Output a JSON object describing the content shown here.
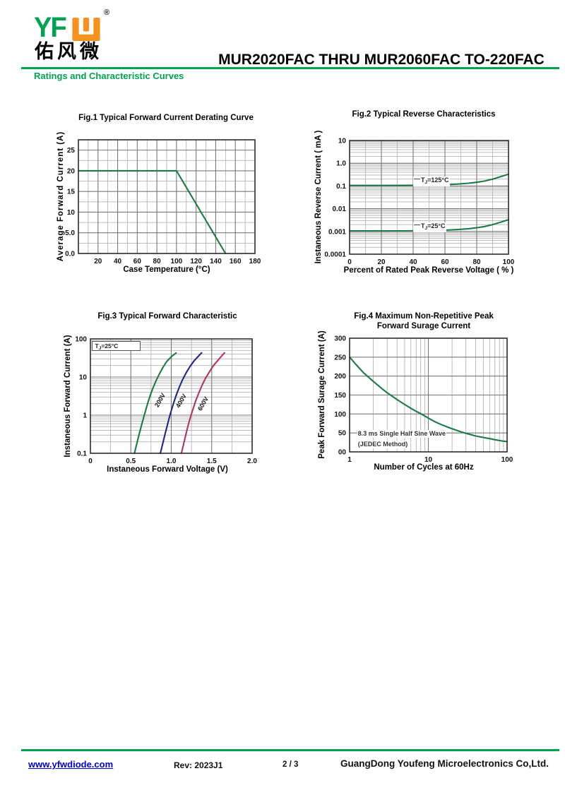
{
  "header": {
    "logo_text": "YF",
    "registered": "®",
    "chinese_name": "佑风微",
    "title": "MUR2020FAC THRU MUR2060FAC  TO-220FAC",
    "subtitle": "Ratings and Characteristic Curves"
  },
  "footer": {
    "website": "www.yfwdiode.com",
    "rev": "Rev: 2023J1",
    "page": "2 / 3",
    "company": "GuangDong Youfeng Microelectronics Co,Ltd."
  },
  "colors": {
    "accent_green": "#00A350",
    "logo_orange": "#F6921E",
    "link_blue": "#0000DD",
    "curve_green": "#1B7A46",
    "curve_blue": "#23238F",
    "curve_crimson": "#B13467",
    "grid_gray": "#A8A8A8"
  },
  "chart_data": [
    {
      "id": "fig1",
      "type": "line",
      "title": "Fig.1  Typical Forward Current Derating Curve",
      "xlabel": "Case Temperature (°C)",
      "ylabel": "Average Forward Current  (A)",
      "xscale": "linear",
      "yscale": "linear",
      "xlim": [
        0,
        180
      ],
      "ylim": [
        0,
        27.5
      ],
      "xminor": 10,
      "xmajor": 20,
      "yminor": 2.5,
      "ymajor": 5,
      "grid": "on",
      "xticks": [
        {
          "v": 20,
          "t": "20"
        },
        {
          "v": 40,
          "t": "40"
        },
        {
          "v": 60,
          "t": "60"
        },
        {
          "v": 80,
          "t": "80"
        },
        {
          "v": 100,
          "t": "100"
        },
        {
          "v": 120,
          "t": "120"
        },
        {
          "v": 140,
          "t": "140"
        },
        {
          "v": 160,
          "t": "160"
        },
        {
          "v": 180,
          "t": "180"
        }
      ],
      "yticks": [
        {
          "v": 0,
          "t": "0.0"
        },
        {
          "v": 5,
          "t": "5.0"
        },
        {
          "v": 10,
          "t": "10"
        },
        {
          "v": 15,
          "t": "15"
        },
        {
          "v": 20,
          "t": "20"
        },
        {
          "v": 25,
          "t": "25"
        }
      ],
      "series": [
        {
          "name": "average-forward-current",
          "color": "#1B7A46",
          "points": [
            [
              0,
              20
            ],
            [
              100,
              20
            ],
            [
              150,
              0
            ]
          ]
        }
      ],
      "annotations": []
    },
    {
      "id": "fig2",
      "type": "line",
      "title": "Fig.2  Typical Reverse Characteristics",
      "xlabel": "Percent of Rated Peak Reverse Voltage ( % )",
      "ylabel": "Instaneous Reverse Current ( mA )",
      "xscale": "linear",
      "yscale": "log",
      "xlim": [
        0,
        100
      ],
      "ylim": [
        0.0001,
        10
      ],
      "xminor": 10,
      "xmajor": 20,
      "grid": "on",
      "xticks": [
        {
          "v": 0,
          "t": "0"
        },
        {
          "v": 20,
          "t": "20"
        },
        {
          "v": 40,
          "t": "40"
        },
        {
          "v": 60,
          "t": "60"
        },
        {
          "v": 80,
          "t": "80"
        },
        {
          "v": 100,
          "t": "100"
        }
      ],
      "yticks": [
        {
          "v": 10,
          "t": "10"
        },
        {
          "v": 1,
          "t": "1.0"
        },
        {
          "v": 0.1,
          "t": "0.1"
        },
        {
          "v": 0.01,
          "t": "0.01"
        },
        {
          "v": 0.001,
          "t": "0.001"
        },
        {
          "v": 0.0001,
          "t": "0.0001"
        }
      ],
      "series": [
        {
          "name": "TJ=125C",
          "color": "#1B7A46",
          "points": [
            [
              0,
              0.105
            ],
            [
              20,
              0.105
            ],
            [
              35,
              0.106
            ],
            [
              50,
              0.109
            ],
            [
              60,
              0.114
            ],
            [
              68,
              0.121
            ],
            [
              75,
              0.132
            ],
            [
              80,
              0.145
            ],
            [
              85,
              0.165
            ],
            [
              90,
              0.2
            ],
            [
              95,
              0.255
            ],
            [
              100,
              0.33
            ]
          ]
        },
        {
          "name": "TJ=25C",
          "color": "#1B7A46",
          "points": [
            [
              0,
              0.00105
            ],
            [
              20,
              0.00105
            ],
            [
              35,
              0.00106
            ],
            [
              50,
              0.00109
            ],
            [
              60,
              0.00114
            ],
            [
              68,
              0.00121
            ],
            [
              75,
              0.00132
            ],
            [
              80,
              0.00145
            ],
            [
              85,
              0.00165
            ],
            [
              90,
              0.002
            ],
            [
              95,
              0.00255
            ],
            [
              100,
              0.0033
            ]
          ]
        }
      ],
      "annotations": [
        {
          "pre": "T",
          "sub": "J",
          "post": "=125°C",
          "x": 40,
          "y": 0.155,
          "style": "dash"
        },
        {
          "pre": "T",
          "sub": "J",
          "post": "=25°C",
          "x": 40,
          "y": 0.00155,
          "style": "dash"
        }
      ]
    },
    {
      "id": "fig3",
      "type": "line",
      "title": "Fig.3  Typical Forward Characteristic",
      "xlabel": "Instaneous Forward Voltage (V)",
      "ylabel": "Instaneous Forward Current  (A)",
      "xscale": "linear",
      "yscale": "log",
      "xlim": [
        0,
        2
      ],
      "ylim": [
        0.1,
        100
      ],
      "xminor": 0.25,
      "xmajor": 0.5,
      "grid": "on",
      "xticks": [
        {
          "v": 0,
          "t": "0"
        },
        {
          "v": 0.5,
          "t": "0.5"
        },
        {
          "v": 1,
          "t": "1.0"
        },
        {
          "v": 1.5,
          "t": "1.5"
        },
        {
          "v": 2,
          "t": "2.0"
        }
      ],
      "yticks": [
        {
          "v": 100,
          "t": "100"
        },
        {
          "v": 10,
          "t": "10"
        },
        {
          "v": 1,
          "t": "1"
        },
        {
          "v": 0.1,
          "t": "0.1"
        }
      ],
      "series": [
        {
          "name": "200V",
          "color": "#1B7A46",
          "points": [
            [
              0.545,
              0.1
            ],
            [
              0.562,
              0.14
            ],
            [
              0.582,
              0.21
            ],
            [
              0.605,
              0.33
            ],
            [
              0.63,
              0.52
            ],
            [
              0.655,
              0.82
            ],
            [
              0.682,
              1.3
            ],
            [
              0.71,
              2.1
            ],
            [
              0.74,
              3.3
            ],
            [
              0.775,
              5.2
            ],
            [
              0.812,
              8
            ],
            [
              0.852,
              12
            ],
            [
              0.897,
              18
            ],
            [
              0.947,
              26
            ],
            [
              1.0,
              34
            ],
            [
              1.06,
              43
            ]
          ]
        },
        {
          "name": "400V",
          "color": "#23238F",
          "points": [
            [
              0.865,
              0.1
            ],
            [
              0.882,
              0.14
            ],
            [
              0.902,
              0.21
            ],
            [
              0.925,
              0.33
            ],
            [
              0.95,
              0.53
            ],
            [
              0.975,
              0.85
            ],
            [
              1.002,
              1.35
            ],
            [
              1.032,
              2.2
            ],
            [
              1.065,
              3.5
            ],
            [
              1.1,
              5.5
            ],
            [
              1.14,
              8.5
            ],
            [
              1.185,
              13
            ],
            [
              1.232,
              19
            ],
            [
              1.285,
              27
            ],
            [
              1.34,
              36
            ],
            [
              1.375,
              43
            ]
          ]
        },
        {
          "name": "600V",
          "color": "#B13467",
          "points": [
            [
              1.125,
              0.1
            ],
            [
              1.142,
              0.14
            ],
            [
              1.162,
              0.21
            ],
            [
              1.185,
              0.34
            ],
            [
              1.21,
              0.55
            ],
            [
              1.237,
              0.88
            ],
            [
              1.267,
              1.4
            ],
            [
              1.3,
              2.3
            ],
            [
              1.335,
              3.6
            ],
            [
              1.375,
              5.7
            ],
            [
              1.42,
              9
            ],
            [
              1.47,
              13.5
            ],
            [
              1.522,
              20
            ],
            [
              1.58,
              28
            ],
            [
              1.635,
              38
            ],
            [
              1.658,
              43
            ]
          ]
        }
      ],
      "annotations": [
        {
          "pre": "T",
          "sub": "J",
          "post": "=25°C",
          "style": "boxed"
        },
        {
          "text": "200V",
          "x": 0.868,
          "y": 2.4,
          "style": "rot"
        },
        {
          "text": "400V",
          "x": 1.13,
          "y": 2.3,
          "style": "rot"
        },
        {
          "text": "600V",
          "x": 1.4,
          "y": 2.0,
          "style": "rot"
        }
      ]
    },
    {
      "id": "fig4",
      "type": "line",
      "title": "Fig.4  Maximum Non-Repetitive Peak",
      "title2": "Forward Surage Current",
      "xlabel": "Number of Cycles at 60Hz",
      "ylabel": "Peak Forward Surage Current (A)",
      "xscale": "log",
      "yscale": "linear",
      "xlim": [
        1,
        100
      ],
      "ylim": [
        0,
        300
      ],
      "yminor": 50,
      "ymajor": 50,
      "grid": "on",
      "xticks": [
        {
          "v": 1,
          "t": "1"
        },
        {
          "v": 10,
          "t": "10"
        },
        {
          "v": 100,
          "t": "100"
        }
      ],
      "yticks": [
        {
          "v": 300,
          "t": "300"
        },
        {
          "v": 250,
          "t": "250"
        },
        {
          "v": 200,
          "t": "200"
        },
        {
          "v": 150,
          "t": "150"
        },
        {
          "v": 100,
          "t": "100"
        },
        {
          "v": 50,
          "t": "50"
        },
        {
          "v": 0,
          "t": "00"
        }
      ],
      "series": [
        {
          "name": "peak-surge-current",
          "color": "#1B7A46",
          "points": [
            [
              1,
              250
            ],
            [
              1.2,
              231
            ],
            [
              1.5,
              209
            ],
            [
              2,
              186
            ],
            [
              2.5,
              169
            ],
            [
              3,
              156
            ],
            [
              4,
              138
            ],
            [
              5,
              125
            ],
            [
              6,
              115
            ],
            [
              7,
              107
            ],
            [
              8,
              101
            ],
            [
              10,
              89
            ],
            [
              12,
              80
            ],
            [
              15,
              71
            ],
            [
              20,
              61
            ],
            [
              25,
              54
            ],
            [
              30,
              49
            ],
            [
              40,
              42
            ],
            [
              50,
              38
            ],
            [
              60,
              35
            ],
            [
              70,
              32
            ],
            [
              85,
              29
            ],
            [
              100,
              27
            ]
          ]
        }
      ],
      "annotations": [
        {
          "text": "8.3 ms Single Half Sine Wave",
          "x": 1.25,
          "y": 45,
          "style": "note"
        },
        {
          "text": "(JEDEC Method)",
          "x": 1.25,
          "y": 17,
          "style": "note"
        }
      ]
    }
  ]
}
